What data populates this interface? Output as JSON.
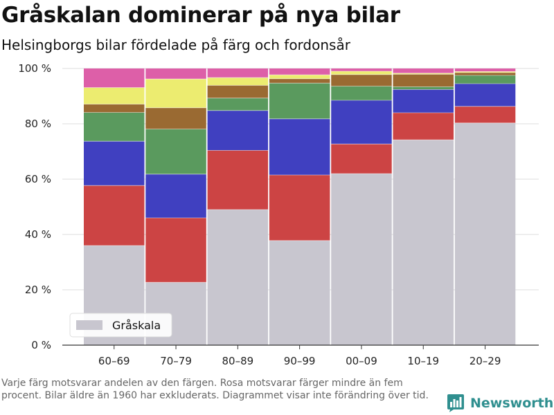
{
  "header": {
    "title": "Gråskalan dominerar på nya bilar",
    "subtitle": "Helsingborgs bilar fördelade på färg och fordonsår"
  },
  "footnote": "Varje färg motsvarar andelen av den färgen. Rosa motsvarar färger mindre än fem procent. Bilar äldre än 1960 har exkluderats. Diagrammet visar inte förändring över tid.",
  "brand": {
    "name": "Newsworthy",
    "icon": "bar-chart-logo-icon",
    "color": "#2f8f8f"
  },
  "chart_data": {
    "type": "bar",
    "stacked": true,
    "categories": [
      "60–69",
      "70–79",
      "80–89",
      "90–99",
      "00–09",
      "10–19",
      "20–29"
    ],
    "ylim": [
      0,
      100
    ],
    "yticks": [
      0,
      20,
      40,
      60,
      80,
      100
    ],
    "ytick_labels": [
      "0 %",
      "20 %",
      "40 %",
      "60 %",
      "80 %",
      "100 %"
    ],
    "grid": "horizontal",
    "legend": {
      "position": "bottom-left",
      "entries": [
        "Gråskala"
      ]
    },
    "series": [
      {
        "name": "Gråskala",
        "color": "#c8c6cf",
        "values": [
          36,
          22.7,
          49,
          37.8,
          62,
          74.2,
          80.3
        ]
      },
      {
        "key": "red",
        "color": "#cc4444",
        "values": [
          21.7,
          23.3,
          21.4,
          23.7,
          10.7,
          9.8,
          6
        ]
      },
      {
        "key": "blue",
        "color": "#4040c0",
        "values": [
          16,
          15.8,
          14.4,
          20.3,
          15.8,
          8.4,
          8.2
        ]
      },
      {
        "key": "green",
        "color": "#5a9a5e",
        "values": [
          10.4,
          16.3,
          4.5,
          12.9,
          5.1,
          1,
          3
        ]
      },
      {
        "key": "brown",
        "color": "#9a6a32",
        "values": [
          3,
          7.7,
          4.6,
          1.6,
          4.2,
          4.5,
          1
        ]
      },
      {
        "key": "yellow",
        "color": "#ecec70",
        "values": [
          6,
          10.4,
          2.8,
          1.4,
          1.2,
          0.4,
          0.4
        ]
      },
      {
        "key": "pink",
        "color": "#dd5fa8",
        "values": [
          6.9,
          3.8,
          3.3,
          2.3,
          1,
          1.7,
          1.1
        ]
      }
    ]
  }
}
